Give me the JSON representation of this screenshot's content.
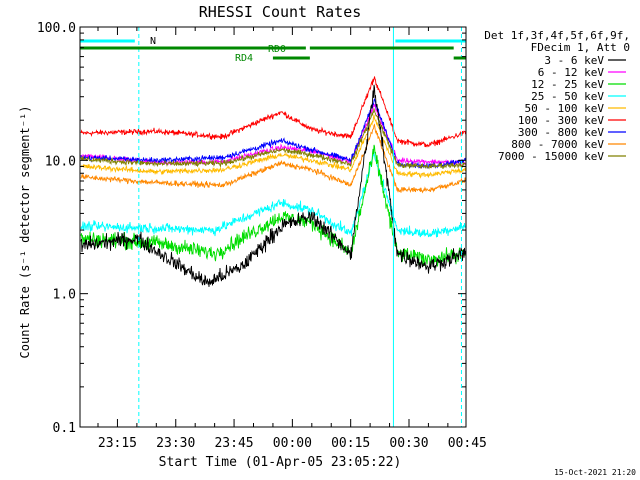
{
  "chart_data": {
    "type": "line",
    "title": "RHESSI Count Rates",
    "xlabel": "Start Time (01-Apr-05 23:05:22)",
    "ylabel": "Count Rate (s⁻¹ detector segment⁻¹)",
    "yscale": "log",
    "ylim": [
      0.1,
      100.0
    ],
    "xlim": [
      "23:05:22",
      "00:44:40"
    ],
    "x_ticks": [
      "23:15",
      "23:30",
      "23:45",
      "00:00",
      "00:15",
      "00:30",
      "00:45"
    ],
    "y_ticks": [
      "0.1",
      "1.0",
      "10.0",
      "100.0"
    ],
    "grid": false,
    "legend_position": "right",
    "legend_header": [
      "Det 1f,3f,4f,5f,6f,9f,",
      "FDecim 1, Att 0"
    ],
    "series": [
      {
        "name": "3 - 6 keV",
        "color": "#000000",
        "x": [
          "23:06",
          "23:20",
          "23:26",
          "23:38",
          "23:47",
          "23:57",
          "00:05",
          "00:15",
          "00:21",
          "00:27",
          "00:35",
          "00:44"
        ],
        "y": [
          2.3,
          2.6,
          2.0,
          1.2,
          1.6,
          3.2,
          3.8,
          2.0,
          35.0,
          2.0,
          1.6,
          2.0
        ]
      },
      {
        "name": "6 - 12 keV",
        "color": "#ff00ff",
        "x": [
          "23:06",
          "23:25",
          "23:42",
          "23:57",
          "00:05",
          "00:15",
          "00:21",
          "00:27",
          "00:35",
          "00:44"
        ],
        "y": [
          10.8,
          9.6,
          9.8,
          12.5,
          11.8,
          9.8,
          26.0,
          10.0,
          9.8,
          9.5
        ]
      },
      {
        "name": "12 - 25 keV",
        "color": "#00dd00",
        "x": [
          "23:06",
          "23:25",
          "23:40",
          "23:57",
          "00:05",
          "00:15",
          "00:21",
          "00:27",
          "00:35",
          "00:44"
        ],
        "y": [
          2.6,
          2.4,
          2.0,
          3.8,
          3.4,
          2.0,
          12.0,
          2.0,
          1.8,
          2.0
        ]
      },
      {
        "name": "25 - 50 keV",
        "color": "#00ffff",
        "x": [
          "23:06",
          "23:25",
          "23:40",
          "23:57",
          "00:05",
          "00:15",
          "00:21",
          "00:27",
          "00:35",
          "00:44"
        ],
        "y": [
          3.2,
          3.1,
          3.0,
          4.8,
          4.2,
          2.8,
          11.0,
          3.0,
          2.8,
          3.2
        ]
      },
      {
        "name": "50 - 100 keV",
        "color": "#ffbb00",
        "x": [
          "23:06",
          "23:25",
          "23:42",
          "23:57",
          "00:05",
          "00:15",
          "00:21",
          "00:27",
          "00:35",
          "00:44"
        ],
        "y": [
          9.0,
          8.2,
          8.5,
          11.0,
          10.0,
          8.5,
          21.0,
          8.0,
          7.8,
          8.5
        ]
      },
      {
        "name": "100 - 300 keV",
        "color": "#ff0000",
        "x": [
          "23:06",
          "23:25",
          "23:42",
          "23:57",
          "00:05",
          "00:15",
          "00:21",
          "00:27",
          "00:35",
          "00:44"
        ],
        "y": [
          16.0,
          16.5,
          15.0,
          23.0,
          17.0,
          15.0,
          42.0,
          14.0,
          13.0,
          16.0
        ]
      },
      {
        "name": "300 - 800 keV",
        "color": "#0000ff",
        "x": [
          "23:06",
          "23:25",
          "23:42",
          "23:57",
          "00:05",
          "00:15",
          "00:21",
          "00:27",
          "00:35",
          "00:44"
        ],
        "y": [
          10.5,
          10.0,
          10.5,
          14.0,
          12.0,
          10.0,
          28.0,
          9.5,
          9.0,
          10.0
        ]
      },
      {
        "name": "800 - 7000 keV",
        "color": "#ff8800",
        "x": [
          "23:06",
          "23:25",
          "23:42",
          "23:57",
          "00:05",
          "00:15",
          "00:21",
          "00:27",
          "00:35",
          "00:44"
        ],
        "y": [
          7.5,
          6.8,
          6.5,
          9.5,
          8.5,
          6.5,
          18.0,
          6.0,
          6.0,
          7.0
        ]
      },
      {
        "name": "7000 - 15000 keV",
        "color": "#808000",
        "x": [
          "23:06",
          "23:25",
          "23:42",
          "23:57",
          "00:05",
          "00:15",
          "00:21",
          "00:27",
          "00:35",
          "00:44"
        ],
        "y": [
          10.2,
          9.4,
          9.5,
          12.0,
          11.0,
          9.4,
          24.0,
          9.2,
          9.0,
          9.3
        ]
      }
    ],
    "state_bars": [
      {
        "label": "N",
        "color": "#00ffff",
        "segments": [
          [
            "23:05:22",
            "23:20:30"
          ],
          [
            "00:26:30",
            "00:44:40"
          ]
        ]
      },
      {
        "label": "RD0",
        "color": "#008800",
        "segments": [
          [
            "23:05:22",
            "00:04:30"
          ],
          [
            "00:04:30",
            "00:41:30"
          ]
        ]
      },
      {
        "label": "RD4",
        "color": "#008800",
        "segments": [
          [
            "23:55:00",
            "00:04:30"
          ],
          [
            "00:41:30",
            "00:44:40"
          ]
        ]
      }
    ],
    "vertical_markers": [
      {
        "t": "23:05:22",
        "color": "#00ffff",
        "style": "solid"
      },
      {
        "t": "23:20:30",
        "color": "#00ffff",
        "style": "dashed"
      },
      {
        "t": "00:26:00",
        "color": "#00ffff",
        "style": "solid"
      },
      {
        "t": "00:43:30",
        "color": "#00ffff",
        "style": "dashed"
      }
    ]
  },
  "footer": {
    "timestamp": "15-Oct-2021 21:20"
  }
}
